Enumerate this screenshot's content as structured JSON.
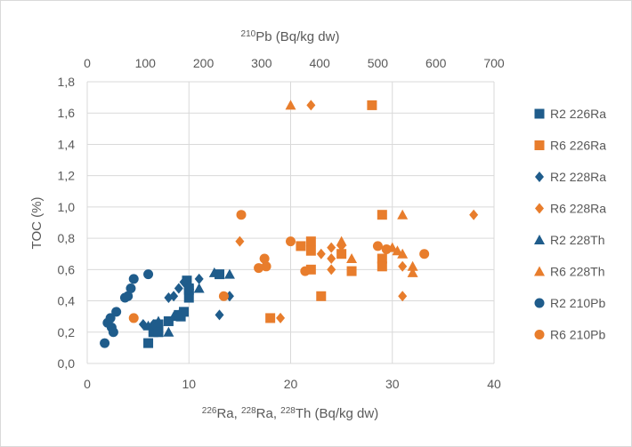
{
  "chart_data": {
    "type": "scatter",
    "title": "",
    "ylabel": "TOC (%)",
    "xlabel_bottom_parts": [
      {
        "sup": "226",
        "text": "Ra, "
      },
      {
        "sup": "228",
        "text": "Ra, "
      },
      {
        "sup": "228",
        "text": "Th (Bq/kg dw)"
      }
    ],
    "xlabel_top_parts": [
      {
        "sup": "210",
        "text": "Pb (Bq/kg dw)"
      }
    ],
    "ylim": [
      0,
      1.8
    ],
    "xlim_bottom": [
      0,
      40
    ],
    "xlim_top": [
      0,
      700
    ],
    "yticks": [
      0,
      0.2,
      0.4,
      0.6,
      0.8,
      1.0,
      1.2,
      1.4,
      1.6,
      1.8
    ],
    "ytick_labels": [
      "0,0",
      "0,2",
      "0,4",
      "0,6",
      "0,8",
      "1,0",
      "1,2",
      "1,4",
      "1,6",
      "1,8"
    ],
    "xticks_bottom": [
      0,
      10,
      20,
      30,
      40
    ],
    "xtick_labels_bottom": [
      "0",
      "10",
      "20",
      "30",
      "40"
    ],
    "xticks_top": [
      0,
      100,
      200,
      300,
      400,
      500,
      600,
      700
    ],
    "xtick_labels_top": [
      "0",
      "100",
      "200",
      "300",
      "400",
      "500",
      "600",
      "700"
    ],
    "grid": true,
    "legend_position": "right",
    "series": [
      {
        "name": "R2 226Ra",
        "color": "#1f5c8b",
        "marker": "square",
        "axis": "bottom",
        "points": [
          [
            6,
            0.13
          ],
          [
            6.5,
            0.2
          ],
          [
            7,
            0.25
          ],
          [
            7,
            0.2
          ],
          [
            8,
            0.27
          ],
          [
            9,
            0.31
          ],
          [
            9.2,
            0.3
          ],
          [
            9.5,
            0.33
          ],
          [
            9.8,
            0.53
          ],
          [
            10,
            0.42
          ],
          [
            10,
            0.47
          ],
          [
            10,
            0.48
          ],
          [
            13,
            0.57
          ]
        ]
      },
      {
        "name": "R6 226Ra",
        "color": "#e87d2c",
        "marker": "square",
        "axis": "bottom",
        "points": [
          [
            18,
            0.29
          ],
          [
            21,
            0.75
          ],
          [
            22,
            0.78
          ],
          [
            22,
            0.72
          ],
          [
            22,
            0.6
          ],
          [
            23,
            0.43
          ],
          [
            25,
            0.7
          ],
          [
            26,
            0.59
          ],
          [
            28,
            1.65
          ],
          [
            29,
            0.95
          ],
          [
            29,
            0.67
          ],
          [
            29,
            0.62
          ]
        ]
      },
      {
        "name": "R2 228Ra",
        "color": "#1f5c8b",
        "marker": "diamond",
        "axis": "bottom",
        "points": [
          [
            5.5,
            0.25
          ],
          [
            6.5,
            0.25
          ],
          [
            8,
            0.42
          ],
          [
            8.5,
            0.43
          ],
          [
            9,
            0.48
          ],
          [
            9.5,
            0.52
          ],
          [
            10,
            0.47
          ],
          [
            11,
            0.54
          ],
          [
            13,
            0.31
          ],
          [
            14,
            0.43
          ],
          [
            9.5,
            0.32
          ]
        ]
      },
      {
        "name": "R6 228Ra",
        "color": "#e87d2c",
        "marker": "diamond",
        "axis": "bottom",
        "points": [
          [
            15,
            0.78
          ],
          [
            19,
            0.29
          ],
          [
            22,
            1.65
          ],
          [
            23,
            0.7
          ],
          [
            24,
            0.74
          ],
          [
            24,
            0.67
          ],
          [
            24,
            0.6
          ],
          [
            25,
            0.75
          ],
          [
            31,
            0.62
          ],
          [
            31,
            0.43
          ],
          [
            38,
            0.95
          ]
        ]
      },
      {
        "name": "R2 228Th",
        "color": "#1f5c8b",
        "marker": "triangle",
        "axis": "bottom",
        "points": [
          [
            6,
            0.24
          ],
          [
            7,
            0.27
          ],
          [
            8,
            0.2
          ],
          [
            8.5,
            0.3
          ],
          [
            9,
            0.31
          ],
          [
            10,
            0.5
          ],
          [
            11,
            0.48
          ],
          [
            14,
            0.57
          ],
          [
            12.5,
            0.58
          ]
        ]
      },
      {
        "name": "R6 228Th",
        "color": "#e87d2c",
        "marker": "triangle",
        "axis": "bottom",
        "points": [
          [
            20,
            1.65
          ],
          [
            25,
            0.78
          ],
          [
            26,
            0.67
          ],
          [
            30,
            0.74
          ],
          [
            30.5,
            0.72
          ],
          [
            31,
            0.95
          ],
          [
            31,
            0.7
          ],
          [
            32,
            0.62
          ],
          [
            32,
            0.58
          ]
        ]
      },
      {
        "name": "R2 210Pb",
        "color": "#1f5c8b",
        "marker": "circle",
        "axis": "top",
        "points": [
          [
            30,
            0.13
          ],
          [
            35,
            0.26
          ],
          [
            40,
            0.29
          ],
          [
            42,
            0.23
          ],
          [
            45,
            0.2
          ],
          [
            50,
            0.33
          ],
          [
            65,
            0.42
          ],
          [
            70,
            0.43
          ],
          [
            75,
            0.48
          ],
          [
            80,
            0.54
          ],
          [
            105,
            0.57
          ]
        ]
      },
      {
        "name": "R6 210Pb",
        "color": "#e87d2c",
        "marker": "circle",
        "axis": "top",
        "points": [
          [
            80,
            0.29
          ],
          [
            235,
            0.43
          ],
          [
            265,
            0.95
          ],
          [
            295,
            0.61
          ],
          [
            305,
            0.67
          ],
          [
            308,
            0.62
          ],
          [
            350,
            0.78
          ],
          [
            375,
            0.59
          ],
          [
            500,
            0.75
          ],
          [
            515,
            0.73
          ],
          [
            580,
            0.7
          ]
        ]
      }
    ]
  }
}
